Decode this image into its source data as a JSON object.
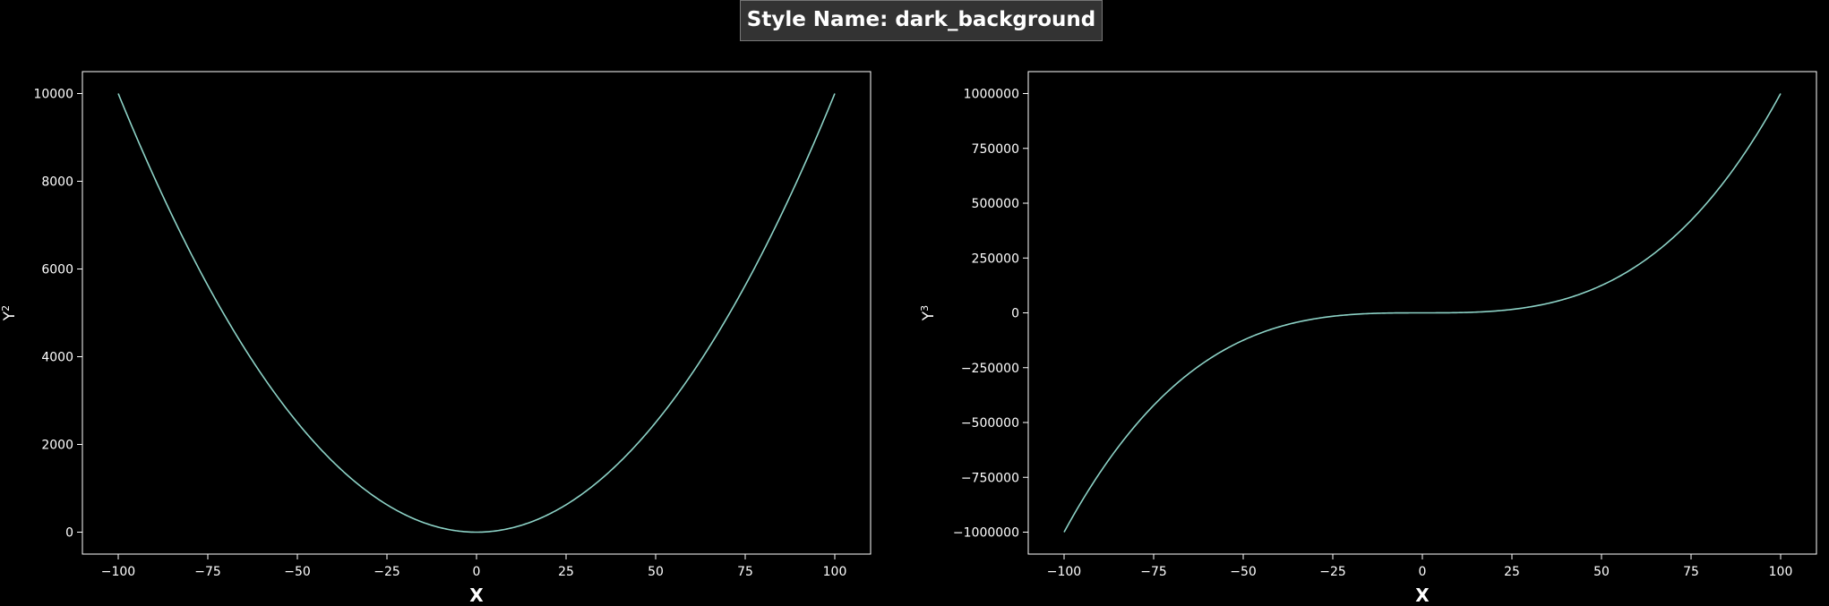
{
  "figure": {
    "suptitle": "Style Name: dark_background",
    "background": "#000000",
    "line_color": "#8dd3c7",
    "axis_color": "#ffffff"
  },
  "chart_data": [
    {
      "type": "line",
      "function": "x^2",
      "xlabel": "X",
      "ylabel": "Y",
      "ylabel_superscript": "2",
      "xlim": [
        -110,
        110
      ],
      "ylim": [
        -500,
        10500
      ],
      "xticks": [
        -100,
        -75,
        -50,
        -25,
        0,
        25,
        50,
        75,
        100
      ],
      "yticks": [
        0,
        2000,
        4000,
        6000,
        8000,
        10000
      ],
      "xtick_labels": [
        "−100",
        "−75",
        "−50",
        "−25",
        "0",
        "25",
        "50",
        "75",
        "100"
      ],
      "ytick_labels": [
        "0",
        "2000",
        "4000",
        "6000",
        "8000",
        "10000"
      ],
      "x_range": [
        -100,
        100
      ],
      "grid": false,
      "series": [
        {
          "x": [
            -100,
            -75,
            -50,
            -25,
            0,
            25,
            50,
            75,
            100
          ],
          "y": [
            10000,
            5625,
            2500,
            625,
            0,
            625,
            2500,
            5625,
            10000
          ]
        }
      ]
    },
    {
      "type": "line",
      "function": "x^3",
      "xlabel": "X",
      "ylabel": "Y",
      "ylabel_superscript": "3",
      "xlim": [
        -110,
        110
      ],
      "ylim": [
        -1100000,
        1100000
      ],
      "xticks": [
        -100,
        -75,
        -50,
        -25,
        0,
        25,
        50,
        75,
        100
      ],
      "yticks": [
        -1000000,
        -750000,
        -500000,
        -250000,
        0,
        250000,
        500000,
        750000,
        1000000
      ],
      "xtick_labels": [
        "−100",
        "−75",
        "−50",
        "−25",
        "0",
        "25",
        "50",
        "75",
        "100"
      ],
      "ytick_labels": [
        "−1000000",
        "−750000",
        "−500000",
        "−250000",
        "0",
        "250000",
        "500000",
        "750000",
        "1000000"
      ],
      "x_range": [
        -100,
        100
      ],
      "grid": false,
      "series": [
        {
          "x": [
            -100,
            -75,
            -50,
            -25,
            0,
            25,
            50,
            75,
            100
          ],
          "y": [
            -1000000,
            -421875,
            -125000,
            -15625,
            0,
            15625,
            125000,
            421875,
            1000000
          ]
        }
      ]
    }
  ]
}
